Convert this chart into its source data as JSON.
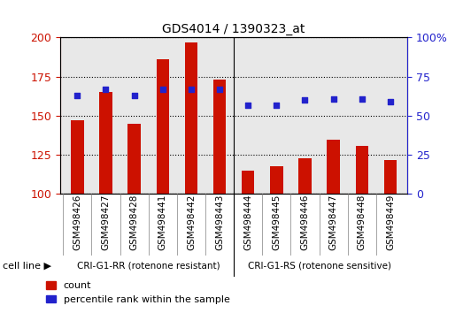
{
  "title": "GDS4014 / 1390323_at",
  "samples": [
    "GSM498426",
    "GSM498427",
    "GSM498428",
    "GSM498441",
    "GSM498442",
    "GSM498443",
    "GSM498444",
    "GSM498445",
    "GSM498446",
    "GSM498447",
    "GSM498448",
    "GSM498449"
  ],
  "counts": [
    147,
    165,
    145,
    186,
    197,
    173,
    115,
    118,
    123,
    135,
    131,
    122
  ],
  "percentile_ranks": [
    63,
    67,
    63,
    67,
    67,
    67,
    57,
    57,
    60,
    61,
    61,
    59
  ],
  "group1_samples": 6,
  "group1_label": "CRI-G1-RR (rotenone resistant)",
  "group2_label": "CRI-G1-RS (rotenone sensitive)",
  "group_color": "#90EE90",
  "bar_color": "#CC1100",
  "dot_color": "#2222CC",
  "ylim_left": [
    100,
    200
  ],
  "ylim_right": [
    0,
    100
  ],
  "yticks_left": [
    100,
    125,
    150,
    175,
    200
  ],
  "yticks_right": [
    0,
    25,
    50,
    75,
    100
  ],
  "ylabel_left_color": "#CC1100",
  "ylabel_right_color": "#2222CC",
  "bar_width": 0.45,
  "background_color": "#ffffff",
  "plot_bg_color": "#e8e8e8",
  "legend_count_label": "count",
  "legend_pct_label": "percentile rank within the sample",
  "cell_line_label": "cell line"
}
